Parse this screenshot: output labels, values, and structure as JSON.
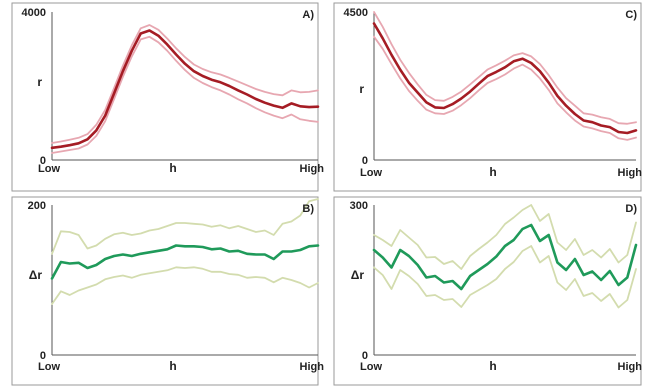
{
  "colors": {
    "red_line": "#a51c24",
    "red_band": "#e7a7b1",
    "green_line": "#1f9a5a",
    "green_band": "#d3dcae",
    "panel_border": "#9a9a9a"
  },
  "chart_data": [
    {
      "panel": "A)",
      "type": "line",
      "xlabel": "h",
      "ylabel": "r",
      "x_tick_labels": [
        "Low",
        "High"
      ],
      "y_tick_labels": [
        "0",
        "4000"
      ],
      "ylim": [
        0,
        4000
      ],
      "x": [
        0,
        1,
        2,
        3,
        4,
        5,
        6,
        7,
        8,
        9,
        10,
        11,
        12,
        13,
        14,
        15,
        16,
        17,
        18,
        19,
        20,
        21,
        22,
        23,
        24,
        25,
        26,
        27,
        28,
        29,
        30
      ],
      "series": [
        {
          "role": "mean",
          "values": [
            330,
            360,
            400,
            450,
            560,
            800,
            1200,
            1800,
            2400,
            2950,
            3420,
            3500,
            3360,
            3120,
            2850,
            2600,
            2400,
            2270,
            2170,
            2100,
            2000,
            1880,
            1770,
            1650,
            1550,
            1470,
            1410,
            1530,
            1450,
            1430,
            1440
          ]
        },
        {
          "role": "upper",
          "values": [
            460,
            500,
            550,
            600,
            700,
            950,
            1350,
            1950,
            2550,
            3100,
            3560,
            3650,
            3520,
            3280,
            3020,
            2780,
            2580,
            2460,
            2370,
            2310,
            2220,
            2120,
            2020,
            1920,
            1840,
            1780,
            1750,
            1880,
            1830,
            1840,
            1880
          ]
        },
        {
          "role": "lower",
          "values": [
            190,
            230,
            270,
            310,
            420,
            650,
            1050,
            1650,
            2250,
            2800,
            3260,
            3330,
            3180,
            2950,
            2680,
            2430,
            2220,
            2080,
            1970,
            1880,
            1770,
            1640,
            1530,
            1400,
            1290,
            1200,
            1130,
            1230,
            1100,
            1060,
            1030
          ]
        }
      ]
    },
    {
      "panel": "C)",
      "type": "line",
      "xlabel": "h",
      "ylabel": "r",
      "x_tick_labels": [
        "Low",
        "High"
      ],
      "y_tick_labels": [
        "0",
        "4500"
      ],
      "ylim": [
        0,
        4500
      ],
      "x": [
        0,
        1,
        2,
        3,
        4,
        5,
        6,
        7,
        8,
        9,
        10,
        11,
        12,
        13,
        14,
        15,
        16,
        17,
        18,
        19,
        20,
        21,
        22,
        23,
        24,
        25,
        26,
        27,
        28,
        29,
        30
      ],
      "series": [
        {
          "role": "mean",
          "values": [
            4150,
            3700,
            3200,
            2750,
            2350,
            2050,
            1750,
            1600,
            1580,
            1700,
            1870,
            2080,
            2320,
            2550,
            2680,
            2820,
            3000,
            3080,
            2950,
            2700,
            2350,
            1950,
            1650,
            1400,
            1200,
            1150,
            1050,
            1000,
            850,
            820,
            900
          ]
        },
        {
          "role": "upper",
          "values": [
            4500,
            4050,
            3520,
            3050,
            2650,
            2300,
            1980,
            1820,
            1800,
            1920,
            2080,
            2300,
            2520,
            2750,
            2880,
            3020,
            3180,
            3250,
            3150,
            2920,
            2580,
            2200,
            1880,
            1650,
            1420,
            1380,
            1300,
            1250,
            1120,
            1100,
            1150
          ]
        },
        {
          "role": "lower",
          "values": [
            3750,
            3380,
            2920,
            2480,
            2100,
            1800,
            1530,
            1420,
            1400,
            1500,
            1670,
            1880,
            2120,
            2340,
            2460,
            2600,
            2780,
            2900,
            2750,
            2480,
            2130,
            1720,
            1450,
            1200,
            1020,
            960,
            880,
            820,
            660,
            610,
            680
          ]
        }
      ]
    },
    {
      "panel": "B)",
      "type": "line",
      "xlabel": "h",
      "ylabel": "Δr",
      "x_tick_labels": [
        "Low",
        "High"
      ],
      "y_tick_labels": [
        "0",
        "200"
      ],
      "ylim": [
        0,
        200
      ],
      "x": [
        0,
        1,
        2,
        3,
        4,
        5,
        6,
        7,
        8,
        9,
        10,
        11,
        12,
        13,
        14,
        15,
        16,
        17,
        18,
        19,
        20,
        21,
        22,
        23,
        24,
        25,
        26,
        27,
        28,
        29,
        30
      ],
      "series": [
        {
          "role": "mean",
          "values": [
            102,
            124,
            122,
            123,
            116,
            120,
            128,
            132,
            134,
            132,
            135,
            137,
            139,
            141,
            146,
            145,
            145,
            144,
            141,
            142,
            138,
            139,
            135,
            134,
            134,
            128,
            138,
            138,
            140,
            145,
            146
          ]
        },
        {
          "role": "upper",
          "values": [
            135,
            165,
            164,
            160,
            142,
            146,
            155,
            161,
            163,
            160,
            162,
            166,
            168,
            172,
            176,
            176,
            175,
            174,
            171,
            173,
            169,
            172,
            168,
            164,
            166,
            160,
            175,
            178,
            186,
            205,
            208
          ]
        },
        {
          "role": "lower",
          "values": [
            68,
            85,
            80,
            86,
            90,
            94,
            101,
            104,
            106,
            103,
            107,
            109,
            111,
            113,
            117,
            116,
            117,
            115,
            111,
            111,
            108,
            107,
            103,
            104,
            103,
            97,
            103,
            100,
            96,
            90,
            96
          ]
        }
      ]
    },
    {
      "panel": "D)",
      "type": "line",
      "xlabel": "h",
      "ylabel": "Δr",
      "x_tick_labels": [
        "Low",
        "High"
      ],
      "y_tick_labels": [
        "0",
        "300"
      ],
      "ylim": [
        0,
        300
      ],
      "x": [
        0,
        1,
        2,
        3,
        4,
        5,
        6,
        7,
        8,
        9,
        10,
        11,
        12,
        13,
        14,
        15,
        16,
        17,
        18,
        19,
        20,
        21,
        22,
        23,
        24,
        25,
        26,
        27,
        28,
        29,
        30
      ],
      "series": [
        {
          "role": "mean",
          "values": [
            210,
            195,
            175,
            210,
            198,
            180,
            155,
            158,
            145,
            148,
            132,
            158,
            170,
            182,
            197,
            218,
            230,
            252,
            260,
            228,
            240,
            185,
            170,
            192,
            160,
            167,
            150,
            168,
            140,
            155,
            220
          ]
        },
        {
          "role": "upper",
          "values": [
            240,
            230,
            218,
            250,
            235,
            220,
            195,
            196,
            182,
            188,
            172,
            198,
            212,
            225,
            240,
            262,
            275,
            290,
            300,
            268,
            282,
            225,
            210,
            232,
            200,
            210,
            195,
            212,
            185,
            200,
            265
          ]
        },
        {
          "role": "lower",
          "values": [
            175,
            160,
            132,
            170,
            158,
            142,
            118,
            120,
            110,
            112,
            96,
            120,
            130,
            140,
            152,
            172,
            186,
            208,
            218,
            185,
            198,
            145,
            130,
            152,
            118,
            124,
            108,
            122,
            95,
            110,
            172
          ]
        }
      ]
    }
  ]
}
